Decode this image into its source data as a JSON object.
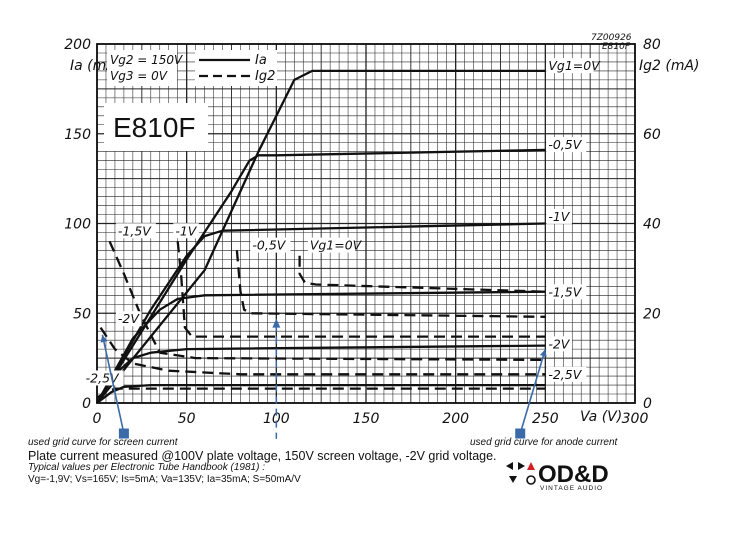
{
  "chart_data": {
    "type": "line",
    "title": "E810F",
    "stamp": [
      "7Z00926",
      "E810F"
    ],
    "xlabel": "Va (V)",
    "ylabel_left": "Ia (mA)",
    "ylabel_right": "Ig2 (mA)",
    "conditions": [
      "Vg2 = 150V",
      "Vg3 = 0V"
    ],
    "legend": [
      {
        "name": "Ia",
        "style": "solid"
      },
      {
        "name": "Ig2",
        "style": "dashed"
      }
    ],
    "xlim": [
      0,
      300
    ],
    "ylim_left": [
      0,
      200
    ],
    "ylim_right": [
      0,
      80
    ],
    "x_ticks": [
      "0",
      "50",
      "100",
      "150",
      "200",
      "250",
      "300"
    ],
    "y_ticks_left": [
      "0",
      "50",
      "100",
      "150",
      "200"
    ],
    "y_ticks_right": [
      "0",
      "20",
      "40",
      "60",
      "80"
    ],
    "grid": true,
    "series": [
      {
        "name": "Vg1=0V",
        "kind": "Ia",
        "x": [
          0,
          60,
          90,
          110,
          120,
          130,
          250
        ],
        "y": [
          0,
          74,
          140,
          180,
          185,
          185,
          185
        ]
      },
      {
        "name": "-0,5V",
        "kind": "Ia",
        "x": [
          0,
          50,
          75,
          85,
          90,
          100,
          250
        ],
        "y": [
          0,
          80,
          118,
          135,
          138,
          138,
          141
        ]
      },
      {
        "name": "-1V",
        "kind": "Ia",
        "x": [
          0,
          30,
          50,
          60,
          70,
          250
        ],
        "y": [
          0,
          52,
          82,
          93,
          96,
          100
        ]
      },
      {
        "name": "-1,5V",
        "kind": "Ia",
        "x": [
          0,
          20,
          35,
          45,
          60,
          250
        ],
        "y": [
          0,
          36,
          52,
          58,
          60,
          62
        ]
      },
      {
        "name": "-2V",
        "kind": "Ia",
        "x": [
          0,
          10,
          20,
          30,
          50,
          250
        ],
        "y": [
          0,
          16,
          25,
          28,
          30,
          32
        ]
      },
      {
        "name": "-2,5V",
        "kind": "Ia",
        "x": [
          0,
          8,
          15,
          30,
          250
        ],
        "y": [
          0,
          6,
          9,
          10,
          10
        ]
      },
      {
        "name": "Vg1=0V",
        "kind": "Ig2",
        "x": [
          113,
          113,
          116,
          122,
          250
        ],
        "y": [
          82,
          72,
          67,
          66,
          62
        ]
      },
      {
        "name": "-0,5V",
        "kind": "Ig2",
        "x": [
          78,
          80,
          82,
          86,
          250
        ],
        "y": [
          85,
          62,
          52,
          50,
          48
        ]
      },
      {
        "name": "-1V",
        "kind": "Ig2",
        "x": [
          45,
          47,
          49,
          53,
          250
        ],
        "y": [
          90,
          70,
          42,
          37,
          37
        ]
      },
      {
        "name": "-1,5V",
        "kind": "Ig2",
        "x": [
          7,
          15,
          24,
          35,
          55,
          250
        ],
        "y": [
          90,
          72,
          50,
          28,
          25,
          24
        ]
      },
      {
        "name": "-2V",
        "kind": "Ig2",
        "x": [
          2,
          10,
          20,
          40,
          80,
          250
        ],
        "y": [
          42,
          30,
          22,
          18,
          16,
          16
        ]
      },
      {
        "name": "-2,5V",
        "kind": "Ig2",
        "x": [
          0,
          5,
          10,
          30,
          250
        ],
        "y": [
          3,
          6,
          8,
          8,
          8
        ]
      }
    ],
    "curve_labels": [
      {
        "text": "Vg1=0V",
        "x": 250,
        "y": 186
      },
      {
        "text": "-0,5V",
        "x": 250,
        "y": 142
      },
      {
        "text": "-1V",
        "x": 250,
        "y": 102
      },
      {
        "text": "-1,5V",
        "x": 250,
        "y": 60
      },
      {
        "text": "-2V",
        "x": 250,
        "y": 31
      },
      {
        "text": "-2,5V",
        "x": 250,
        "y": 14
      },
      {
        "text": "-1,5V",
        "x": 10,
        "y": 94
      },
      {
        "text": "-1V",
        "x": 42,
        "y": 94
      },
      {
        "text": "-0,5V",
        "x": 85,
        "y": 86
      },
      {
        "text": "Vg1=0V",
        "x": 117,
        "y": 86
      },
      {
        "text": "-2V",
        "x": 10,
        "y": 45
      },
      {
        "text": "-2,5V",
        "x": -8,
        "y": 12
      }
    ],
    "annotations": [
      {
        "text": "used grid curve for screen current",
        "arrow_from_x": 15,
        "arrow_from_y": -17,
        "arrow_to_x": 3,
        "arrow_to_y": 38
      },
      {
        "text": "used grid curve for anode current",
        "arrow_from_x": 236,
        "arrow_from_y": -17,
        "arrow_to_x": 250,
        "arrow_to_y": 30
      }
    ],
    "marker_line": {
      "x": 100,
      "y_from": 47,
      "y_to": -20
    }
  },
  "caption": {
    "main": "Plate current measured @100V plate voltage, 150V screen voltage, -2V grid voltage.",
    "typical_title": "Typical values per Electronic Tube Handbook (1981) :",
    "typical_values": "Vg=-1,9V; Vs=165V; Is=5mA; Va=135V; Ia=35mA; S=50mA/V"
  },
  "logo": {
    "brand": "OD&D",
    "tagline": "VINTAGE AUDIO"
  },
  "colors": {
    "curve": "#111111",
    "grid": "#222222",
    "annotation": "#3a6aa8",
    "logo_red": "#d21f26"
  }
}
